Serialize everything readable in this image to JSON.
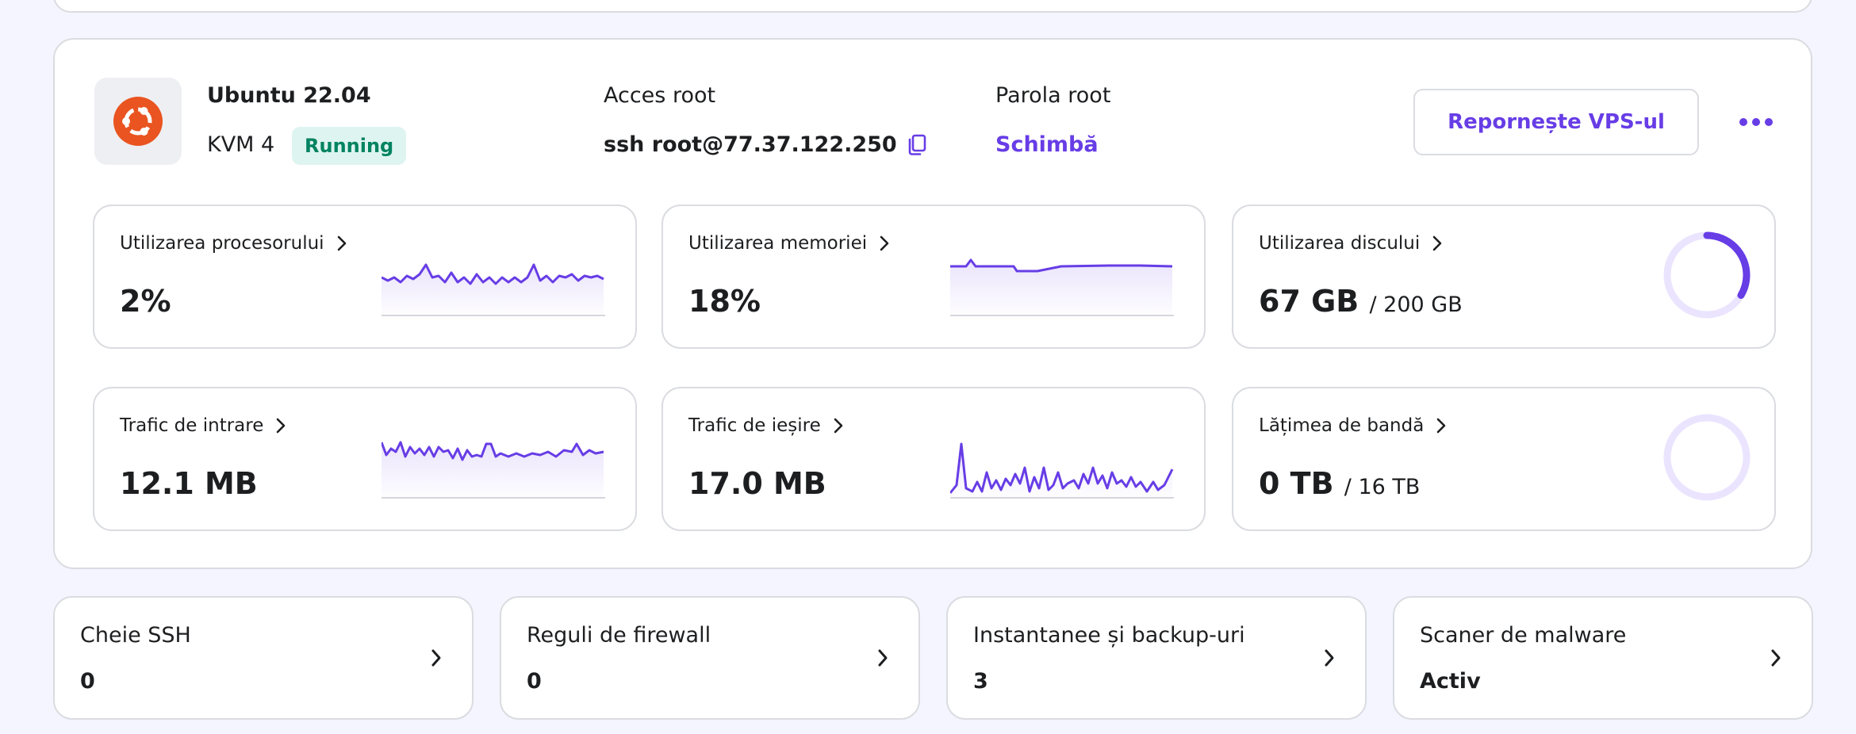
{
  "server": {
    "os_name": "Ubuntu 22.04",
    "plan": "KVM 4",
    "status": "Running",
    "os_icon": "ubuntu-logo",
    "root_access_label": "Acces root",
    "root_access_value": "ssh root@77.37.122.250",
    "root_password_label": "Parola root",
    "root_password_action": "Schimbă",
    "restart_button": "Repornește VPS-ul",
    "more_icon": "more-horizontal-icon"
  },
  "metrics": {
    "cpu": {
      "title": "Utilizarea procesorului",
      "value": "2%"
    },
    "memory": {
      "title": "Utilizarea memoriei",
      "value": "18%"
    },
    "disk": {
      "title": "Utilizarea discului",
      "value": "67 GB",
      "total": "/ 200 GB",
      "used_fraction": 0.335
    },
    "incoming": {
      "title": "Trafic de intrare",
      "value": "12.1 MB"
    },
    "outgoing": {
      "title": "Trafic de ieșire",
      "value": "17.0 MB"
    },
    "bandwidth": {
      "title": "Lățimea de bandă",
      "value": "0 TB",
      "total": "/ 16 TB",
      "used_fraction": 0
    }
  },
  "shortcuts": [
    {
      "title": "Cheie SSH",
      "value": "0"
    },
    {
      "title": "Reguli de firewall",
      "value": "0"
    },
    {
      "title": "Instantanee și backup-uri",
      "value": "3"
    },
    {
      "title": "Scaner de malware",
      "value": "Activ"
    }
  ],
  "colors": {
    "accent": "#673de6",
    "status_bg": "#def4f0",
    "status_text": "#008361",
    "ubuntu": "#e95420"
  }
}
